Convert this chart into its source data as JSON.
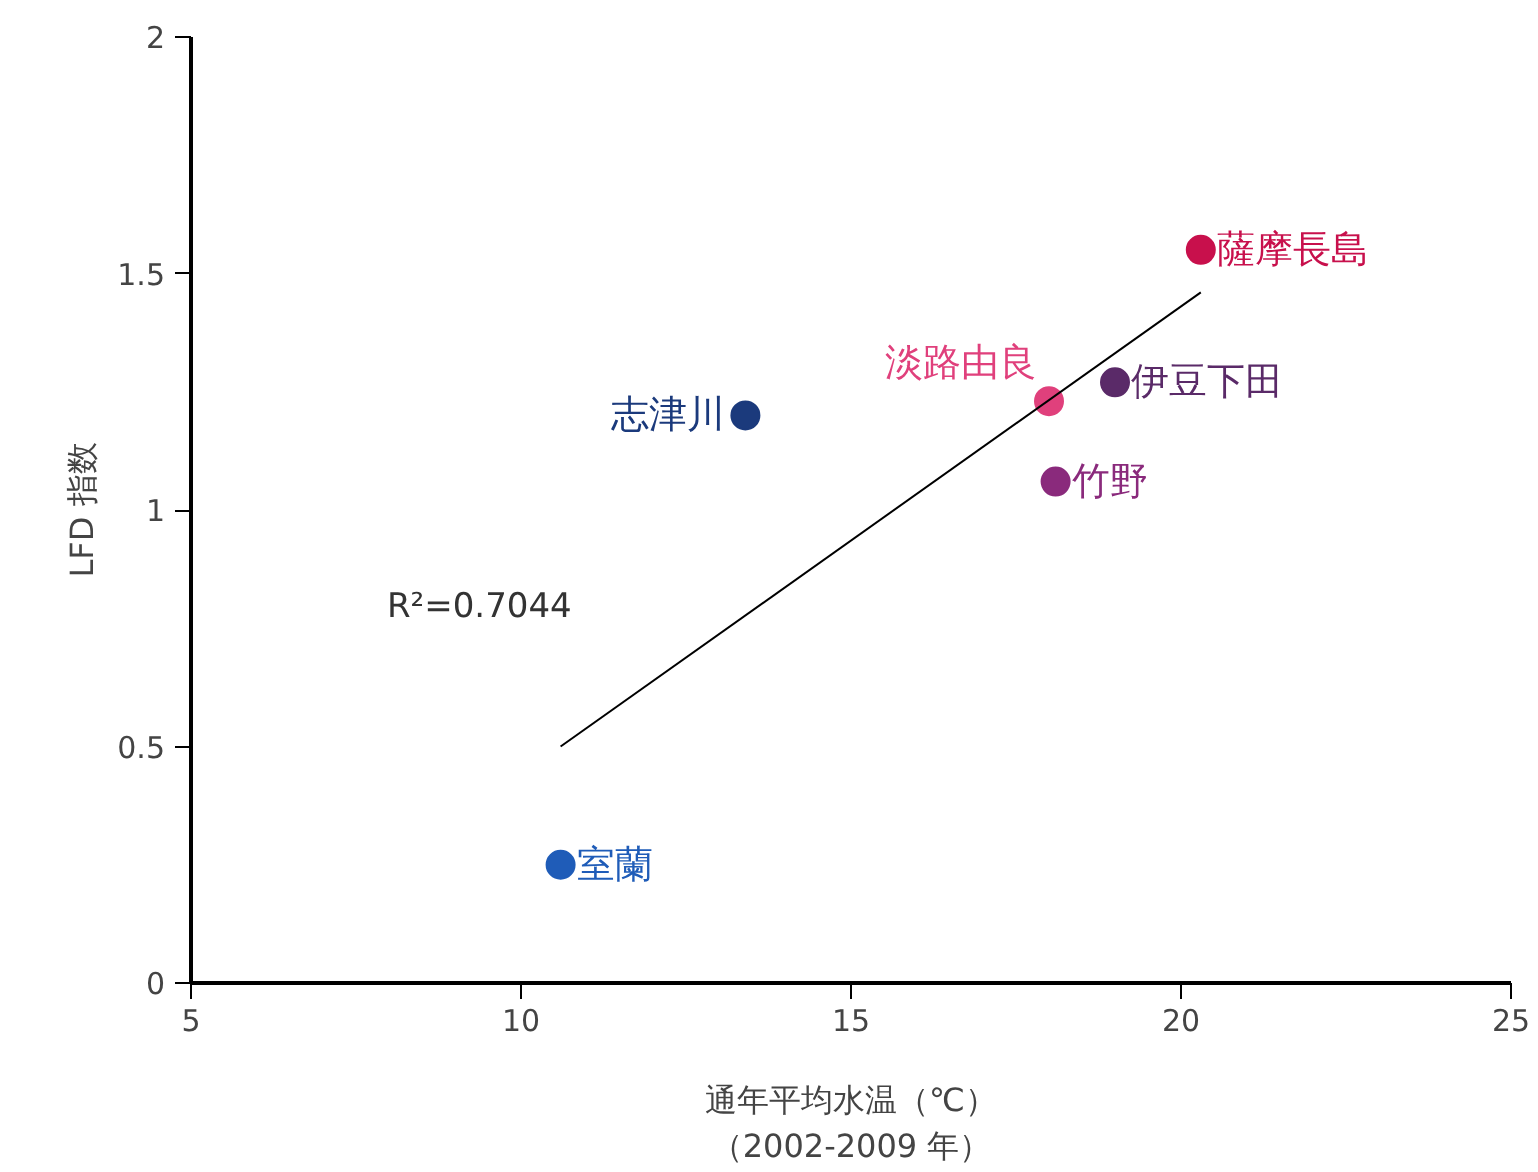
{
  "chart_data": {
    "type": "scatter",
    "xlabel": "通年平均水温（℃）（2002-2009 年）",
    "ylabel": "LFD 指数",
    "xlim": [
      5,
      25
    ],
    "xticks": [
      5,
      10,
      15,
      20,
      25
    ],
    "ylim": [
      0,
      2
    ],
    "yticks": [
      0,
      0.5,
      1,
      1.5,
      2
    ],
    "grid": false,
    "marker": "circle",
    "series": [
      {
        "name": "室蘭",
        "color": "#1f5cb8",
        "x": [
          10.6
        ],
        "values": [
          0.25
        ]
      },
      {
        "name": "志津川",
        "color": "#1b3a7c",
        "x": [
          13.4
        ],
        "values": [
          1.2
        ]
      },
      {
        "name": "淡路由良",
        "color": "#e0407c",
        "x": [
          18.0
        ],
        "values": [
          1.23
        ]
      },
      {
        "name": "竹野",
        "color": "#8a2a7c",
        "x": [
          18.1
        ],
        "values": [
          1.06
        ]
      },
      {
        "name": "伊豆下田",
        "color": "#5a2a68",
        "x": [
          19.0
        ],
        "values": [
          1.27
        ]
      },
      {
        "name": "薩摩長島",
        "color": "#c8104c",
        "x": [
          20.3
        ],
        "values": [
          1.55
        ]
      },
      {
        "type": "line",
        "marker": "none",
        "color": "#000000",
        "x": [
          10.6,
          20.3
        ],
        "values": [
          0.5,
          1.46
        ]
      }
    ],
    "annotations": [
      "R²=0.7044"
    ]
  }
}
